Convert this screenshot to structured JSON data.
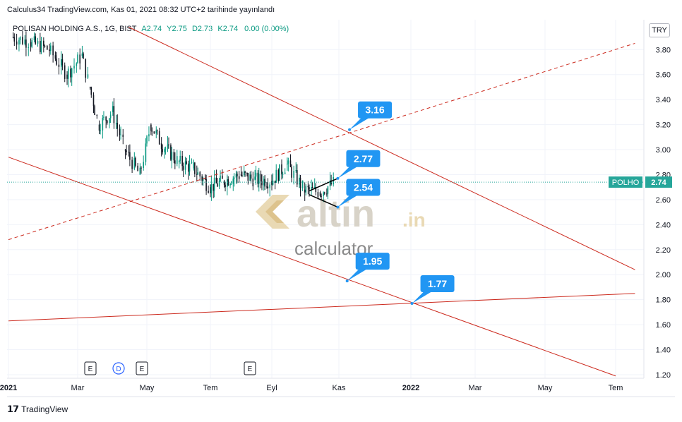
{
  "header": {
    "published": "Calculus34 TradingView.com, Kas 01, 2021 08:32 UTC+2 tarihinde yayınlandı"
  },
  "legend": {
    "symbol": "POLISAN HOLDING A.S., 1G, BIST",
    "open": "A2.74",
    "high": "Y2.75",
    "low": "D2.73",
    "close": "K2.74",
    "change": "0.00 (0.00%)"
  },
  "currency": "TRY",
  "ticker": {
    "name": "POLHO",
    "price": "2.74"
  },
  "colors": {
    "up": "#089981",
    "down": "#131722",
    "line": "#cc2a1e",
    "label": "#2196f3",
    "ticker": "#26a69a"
  },
  "watermark": {
    "brand": "altin",
    "suffix": ".in",
    "sub": "calculator"
  },
  "footer": {
    "brand": "TradingView"
  },
  "events": [
    "E",
    "D",
    "E",
    "E"
  ],
  "chart_data": {
    "type": "candlestick",
    "y_ticks": [
      "1.20",
      "1.40",
      "1.60",
      "1.80",
      "2.00",
      "2.20",
      "2.40",
      "2.60",
      "2.80",
      "3.00",
      "3.20",
      "3.40",
      "3.60",
      "3.80"
    ],
    "x_ticks": [
      "2021",
      "Mar",
      "May",
      "Tem",
      "Eyl",
      "Kas",
      "2022",
      "Mar",
      "May",
      "Tem"
    ],
    "ylim": [
      1.19,
      4.0
    ],
    "last_price": 2.74,
    "annotations": [
      {
        "text": "3.16",
        "date": "2021-11-10",
        "value": 3.16
      },
      {
        "text": "2.77",
        "date": "2021-10-31",
        "value": 2.77
      },
      {
        "text": "2.54",
        "date": "2021-10-31",
        "value": 2.54
      },
      {
        "text": "1.95",
        "date": "2021-11-08",
        "value": 1.95
      },
      {
        "text": "1.77",
        "date": "2022-01-02",
        "value": 1.77
      }
    ],
    "trendlines": [
      {
        "style": "solid",
        "from": [
          "2021-04-15",
          3.98
        ],
        "to": [
          "2022-07-18",
          2.04
        ]
      },
      {
        "style": "dashed",
        "from": [
          "2021-01-01",
          2.28
        ],
        "to": [
          "2022-07-18",
          3.85
        ]
      },
      {
        "style": "solid",
        "from": [
          "2021-01-01",
          2.94
        ],
        "to": [
          "2022-07-01",
          1.19
        ]
      },
      {
        "style": "solid",
        "from": [
          "2021-01-01",
          1.63
        ],
        "to": [
          "2022-07-18",
          1.85
        ]
      }
    ],
    "candles_approx": [
      [
        "2021-01-05",
        3.85,
        3.95,
        3.8,
        3.9
      ],
      [
        "2021-01-20",
        3.9,
        3.98,
        3.78,
        3.86
      ],
      [
        "2021-02-05",
        3.86,
        3.95,
        3.7,
        3.8
      ],
      [
        "2021-02-20",
        3.8,
        3.9,
        3.44,
        3.6
      ],
      [
        "2021-03-05",
        3.6,
        3.85,
        3.45,
        3.75
      ],
      [
        "2021-03-12",
        3.75,
        3.8,
        3.48,
        3.5
      ],
      [
        "2021-03-20",
        3.4,
        3.4,
        2.88,
        3.2
      ],
      [
        "2021-04-01",
        3.2,
        3.38,
        3.05,
        3.3
      ],
      [
        "2021-04-12",
        3.25,
        3.3,
        2.95,
        3.0
      ],
      [
        "2021-04-25",
        3.0,
        3.05,
        2.62,
        2.8
      ],
      [
        "2021-05-05",
        2.8,
        3.25,
        2.78,
        3.2
      ],
      [
        "2021-05-15",
        3.15,
        3.22,
        2.95,
        3.05
      ],
      [
        "2021-06-01",
        3.0,
        3.05,
        2.86,
        2.9
      ],
      [
        "2021-06-15",
        2.9,
        2.95,
        2.82,
        2.85
      ],
      [
        "2021-07-01",
        2.8,
        2.82,
        2.62,
        2.7
      ],
      [
        "2021-07-15",
        2.72,
        2.8,
        2.65,
        2.75
      ],
      [
        "2021-08-01",
        2.75,
        2.84,
        2.62,
        2.8
      ],
      [
        "2021-08-15",
        2.8,
        2.86,
        2.7,
        2.76
      ],
      [
        "2021-09-01",
        2.76,
        2.85,
        2.7,
        2.75
      ],
      [
        "2021-09-15",
        2.75,
        2.93,
        2.72,
        2.88
      ],
      [
        "2021-10-01",
        2.85,
        2.88,
        2.62,
        2.68
      ],
      [
        "2021-10-15",
        2.68,
        2.72,
        2.62,
        2.66
      ],
      [
        "2021-10-29",
        2.7,
        2.75,
        2.68,
        2.74
      ]
    ]
  }
}
